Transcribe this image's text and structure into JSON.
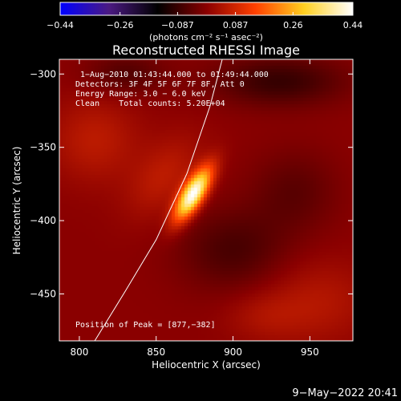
{
  "chart_data": {
    "type": "heatmap",
    "title": "Reconstructed RHESSI Image",
    "xlabel": "Heliocentric X (arcsec)",
    "ylabel": "Heliocentric Y (arcsec)",
    "xlim": [
      787,
      978
    ],
    "ylim": [
      -482,
      -290
    ],
    "xticks": [
      {
        "value": 800,
        "label": "800"
      },
      {
        "value": 850,
        "label": "850"
      },
      {
        "value": 900,
        "label": "900"
      },
      {
        "value": 950,
        "label": "950"
      }
    ],
    "yticks": [
      {
        "value": -300,
        "label": "−300"
      },
      {
        "value": -350,
        "label": "−350"
      },
      {
        "value": -400,
        "label": "−400"
      },
      {
        "value": -450,
        "label": "−450"
      }
    ],
    "colorbar": {
      "min": -0.44,
      "max": 0.44,
      "unit_label": "(photons cm⁻² s⁻¹ asec⁻²)",
      "ticks": [
        {
          "value": -0.44,
          "label": "−0.44"
        },
        {
          "value": -0.26,
          "label": "−0.26"
        },
        {
          "value": -0.087,
          "label": "−0.087"
        },
        {
          "value": 0.087,
          "label": "0.087"
        },
        {
          "value": 0.26,
          "label": "0.26"
        },
        {
          "value": 0.44,
          "label": "0.44"
        }
      ],
      "colormap": [
        "#0000ff",
        "#4b1a82",
        "#000000",
        "#8a0000",
        "#ff4000",
        "#ffd020",
        "#ffffff"
      ]
    },
    "annotations": [
      "1−Aug−2010 01:43:44.000 to 01:49:44.000",
      "Detectors: 3F 4F 5F 6F 7F 8F, Att 0",
      "Energy Range: 3.0 − 6.0 keV",
      "Clean    Total counts: 5.20E+04"
    ],
    "peak_label": "Position of Peak = [877,−382]",
    "peak": {
      "x": 877,
      "y": -382,
      "value": 0.44
    },
    "limb_curve": {
      "x": [
        810,
        830,
        850,
        870,
        885,
        893
      ],
      "y": [
        -482,
        -448,
        -413,
        -368,
        -322,
        -290
      ]
    },
    "blobs": [
      {
        "x": 874,
        "y": -382,
        "sx": 14,
        "sy": 5,
        "angle": 60,
        "amp": 0.44
      },
      {
        "x": 855,
        "y": -370,
        "sx": 22,
        "sy": 13,
        "angle": 55,
        "amp": 0.06
      },
      {
        "x": 810,
        "y": -345,
        "sx": 20,
        "sy": 20,
        "angle": 0,
        "amp": 0.06
      },
      {
        "x": 955,
        "y": -455,
        "sx": 25,
        "sy": 20,
        "angle": 0,
        "amp": 0.05
      },
      {
        "x": 920,
        "y": -465,
        "sx": 18,
        "sy": 12,
        "angle": 0,
        "amp": 0.035
      },
      {
        "x": 930,
        "y": -305,
        "sx": 30,
        "sy": 12,
        "angle": 0,
        "amp": -0.09
      },
      {
        "x": 830,
        "y": -300,
        "sx": 18,
        "sy": 10,
        "angle": 0,
        "amp": -0.06
      },
      {
        "x": 900,
        "y": -420,
        "sx": 25,
        "sy": 20,
        "angle": 0,
        "amp": -0.07
      },
      {
        "x": 940,
        "y": -380,
        "sx": 20,
        "sy": 20,
        "angle": 0,
        "amp": -0.05
      }
    ]
  },
  "footer": {
    "timestamp": "9−May−2022 20:41"
  }
}
